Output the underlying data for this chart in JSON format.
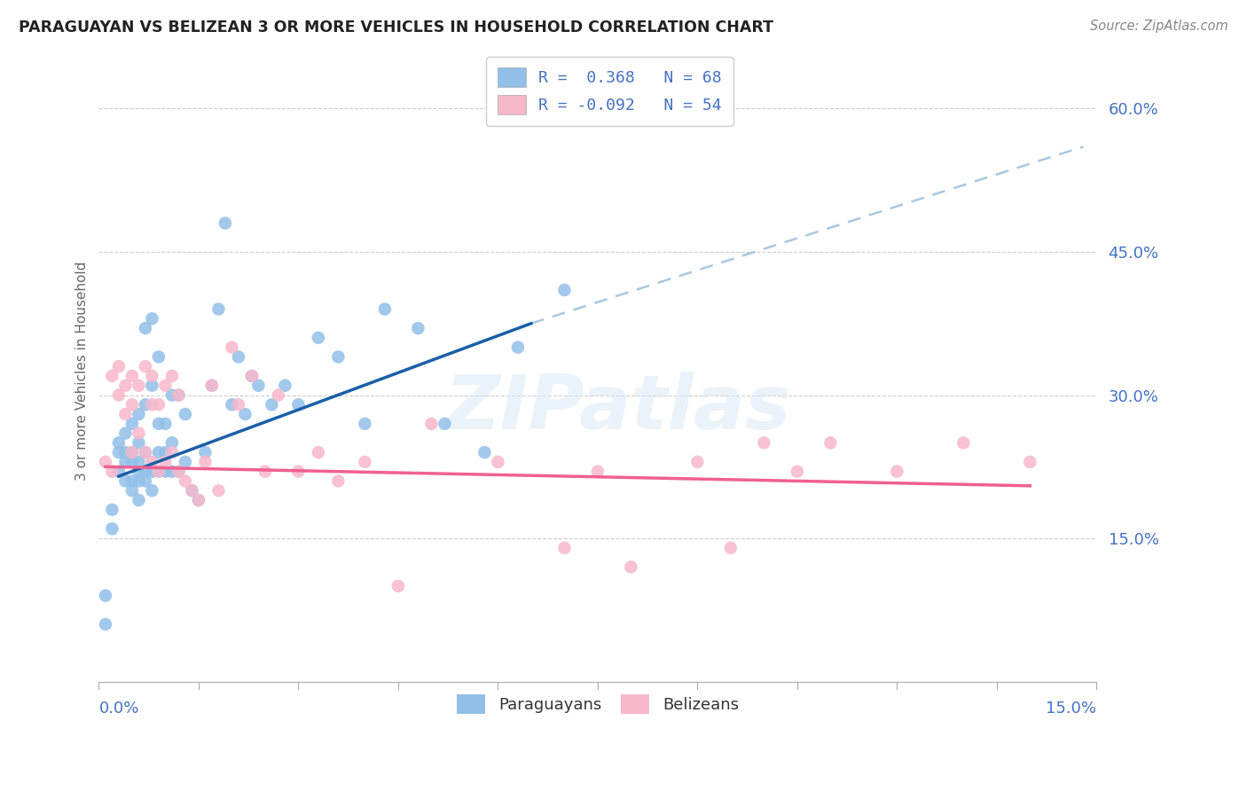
{
  "title": "PARAGUAYAN VS BELIZEAN 3 OR MORE VEHICLES IN HOUSEHOLD CORRELATION CHART",
  "source": "Source: ZipAtlas.com",
  "ylabel": "3 or more Vehicles in Household",
  "ytick_vals": [
    0.0,
    0.15,
    0.3,
    0.45,
    0.6
  ],
  "ytick_labels": [
    "",
    "15.0%",
    "30.0%",
    "45.0%",
    "60.0%"
  ],
  "xlim": [
    0.0,
    0.15
  ],
  "ylim": [
    0.0,
    0.65
  ],
  "legend_r1": "R =  0.368   N = 68",
  "legend_r2": "R = -0.092   N = 54",
  "blue_color": "#92c0e8",
  "pink_color": "#f7b8cc",
  "blue_line_color": "#1a5fa8",
  "pink_line_color": "#f06090",
  "dashed_line_color": "#a8c8e0",
  "watermark_text": "ZIPatlas",
  "paraguayan_x": [
    0.001,
    0.001,
    0.002,
    0.002,
    0.003,
    0.003,
    0.003,
    0.004,
    0.004,
    0.004,
    0.004,
    0.005,
    0.005,
    0.005,
    0.005,
    0.005,
    0.006,
    0.006,
    0.006,
    0.006,
    0.006,
    0.006,
    0.007,
    0.007,
    0.007,
    0.007,
    0.007,
    0.008,
    0.008,
    0.008,
    0.008,
    0.009,
    0.009,
    0.009,
    0.009,
    0.01,
    0.01,
    0.01,
    0.011,
    0.011,
    0.011,
    0.012,
    0.012,
    0.013,
    0.013,
    0.014,
    0.015,
    0.016,
    0.017,
    0.018,
    0.019,
    0.02,
    0.021,
    0.022,
    0.023,
    0.024,
    0.026,
    0.028,
    0.03,
    0.033,
    0.036,
    0.04,
    0.043,
    0.048,
    0.052,
    0.058,
    0.063,
    0.07
  ],
  "paraguayan_y": [
    0.09,
    0.06,
    0.18,
    0.16,
    0.22,
    0.24,
    0.25,
    0.21,
    0.23,
    0.24,
    0.26,
    0.2,
    0.21,
    0.23,
    0.24,
    0.27,
    0.19,
    0.21,
    0.22,
    0.23,
    0.25,
    0.28,
    0.21,
    0.22,
    0.24,
    0.29,
    0.37,
    0.2,
    0.22,
    0.31,
    0.38,
    0.22,
    0.24,
    0.27,
    0.34,
    0.22,
    0.24,
    0.27,
    0.22,
    0.25,
    0.3,
    0.22,
    0.3,
    0.23,
    0.28,
    0.2,
    0.19,
    0.24,
    0.31,
    0.39,
    0.48,
    0.29,
    0.34,
    0.28,
    0.32,
    0.31,
    0.29,
    0.31,
    0.29,
    0.36,
    0.34,
    0.27,
    0.39,
    0.37,
    0.27,
    0.24,
    0.35,
    0.41
  ],
  "belizean_x": [
    0.001,
    0.002,
    0.002,
    0.003,
    0.003,
    0.004,
    0.004,
    0.005,
    0.005,
    0.005,
    0.006,
    0.006,
    0.007,
    0.007,
    0.008,
    0.008,
    0.008,
    0.009,
    0.009,
    0.01,
    0.01,
    0.011,
    0.011,
    0.012,
    0.012,
    0.013,
    0.014,
    0.015,
    0.016,
    0.017,
    0.018,
    0.02,
    0.021,
    0.023,
    0.025,
    0.027,
    0.03,
    0.033,
    0.036,
    0.04,
    0.045,
    0.05,
    0.06,
    0.07,
    0.075,
    0.08,
    0.09,
    0.095,
    0.1,
    0.105,
    0.11,
    0.12,
    0.13,
    0.14
  ],
  "belizean_y": [
    0.23,
    0.22,
    0.32,
    0.3,
    0.33,
    0.28,
    0.31,
    0.24,
    0.29,
    0.32,
    0.26,
    0.31,
    0.24,
    0.33,
    0.23,
    0.29,
    0.32,
    0.22,
    0.29,
    0.23,
    0.31,
    0.24,
    0.32,
    0.22,
    0.3,
    0.21,
    0.2,
    0.19,
    0.23,
    0.31,
    0.2,
    0.35,
    0.29,
    0.32,
    0.22,
    0.3,
    0.22,
    0.24,
    0.21,
    0.23,
    0.1,
    0.27,
    0.23,
    0.14,
    0.22,
    0.12,
    0.23,
    0.14,
    0.25,
    0.22,
    0.25,
    0.22,
    0.25,
    0.23
  ],
  "blue_line_x": [
    0.003,
    0.065
  ],
  "blue_line_y": [
    0.215,
    0.375
  ],
  "pink_line_x": [
    0.001,
    0.14
  ],
  "pink_line_y": [
    0.225,
    0.205
  ],
  "dash_line_x": [
    0.065,
    0.148
  ],
  "dash_line_y": [
    0.375,
    0.56
  ]
}
